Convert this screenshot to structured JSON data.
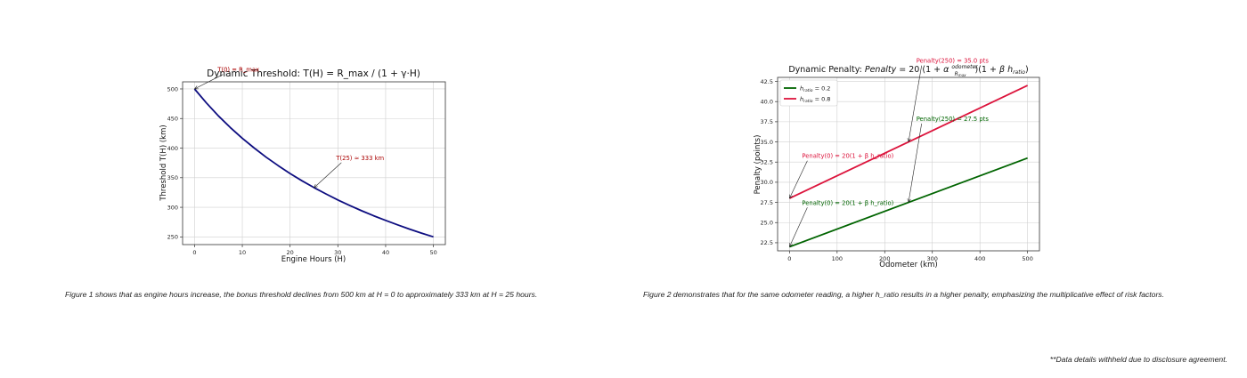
{
  "chart_data": [
    {
      "type": "line",
      "title": "Dynamic Threshold: T(H) = R_max / (1 + γ·H)",
      "xlabel": "Engine Hours (H)",
      "ylabel": "Threshold T(H) (km)",
      "xlim": [
        -2.5,
        52.5
      ],
      "ylim": [
        237,
        512
      ],
      "xticks": [
        0,
        10,
        20,
        30,
        40,
        50
      ],
      "yticks": [
        250,
        300,
        350,
        400,
        450,
        500
      ],
      "grid": true,
      "series": [
        {
          "color": "#0d0d80",
          "x": [
            0,
            2.5,
            5,
            7.5,
            10,
            12.5,
            15,
            17.5,
            20,
            22.5,
            25,
            27.5,
            30,
            32.5,
            35,
            37.5,
            40,
            42.5,
            45,
            47.5,
            50
          ],
          "y": [
            500,
            476.2,
            454.5,
            434.8,
            416.7,
            400.0,
            384.6,
            370.4,
            357.1,
            344.8,
            333.3,
            322.6,
            312.5,
            303.0,
            294.1,
            285.7,
            277.8,
            270.3,
            263.2,
            256.4,
            250
          ]
        }
      ],
      "annotations": [
        {
          "text": "T(0) = R_max",
          "color": "#aa0000",
          "point": [
            0,
            500
          ],
          "text_pos": [
            5.2,
            529
          ]
        },
        {
          "text": "T(25) ≈ 333 km",
          "color": "#aa0000",
          "point": [
            25,
            333
          ],
          "text_pos": [
            30,
            380
          ]
        }
      ]
    },
    {
      "type": "line",
      "title": "Dynamic Penalty: Penalty = 20(1 + α·odometer/R_max)(1 + β·h_ratio)",
      "xlabel": "Odometer (km)",
      "ylabel": "Penalty (points)",
      "xlim": [
        -25,
        525
      ],
      "ylim": [
        21.5,
        43
      ],
      "xticks": [
        0,
        100,
        200,
        300,
        400,
        500
      ],
      "yticks": [
        22.5,
        25.0,
        27.5,
        30.0,
        32.5,
        35.0,
        37.5,
        40.0,
        42.5
      ],
      "grid": true,
      "legend": "top-left",
      "series": [
        {
          "name": "h_ratio = 0.2",
          "color": "#006400",
          "x": [
            0,
            500
          ],
          "y": [
            22,
            33
          ]
        },
        {
          "name": "h_ratio = 0.8",
          "color": "#dc143c",
          "x": [
            0,
            500
          ],
          "y": [
            28,
            42
          ]
        }
      ],
      "annotations": [
        {
          "text": "Penalty(250) = 35.0 pts",
          "color": "#dc143c",
          "point": [
            250,
            35
          ],
          "text_pos": [
            270,
            44.8
          ]
        },
        {
          "text": "Penalty(250) = 27.5 pts",
          "color": "#006400",
          "point": [
            250,
            27.5
          ],
          "text_pos": [
            270,
            37.6
          ]
        },
        {
          "text": "Penalty(0) = 20(1 + β h_ratio)",
          "color": "#dc143c",
          "point": [
            0,
            28
          ],
          "text_pos": [
            30,
            33
          ]
        },
        {
          "text": "Penalty(0) = 20(1 + β h_ratio)",
          "color": "#006400",
          "point": [
            0,
            22
          ],
          "text_pos": [
            30,
            27.2
          ]
        }
      ]
    }
  ],
  "captions": {
    "fig1": "Figure 1 shows that as engine hours increase, the bonus threshold declines from 500 km at H = 0 to approximately 333 km at H = 25 hours.",
    "fig2": "Figure 2 demonstrates that for the same odometer reading, a higher h_ratio results in a higher penalty, emphasizing the multiplicative effect of risk factors."
  },
  "footnote": "**Data details withheld due to disclosure agreement."
}
